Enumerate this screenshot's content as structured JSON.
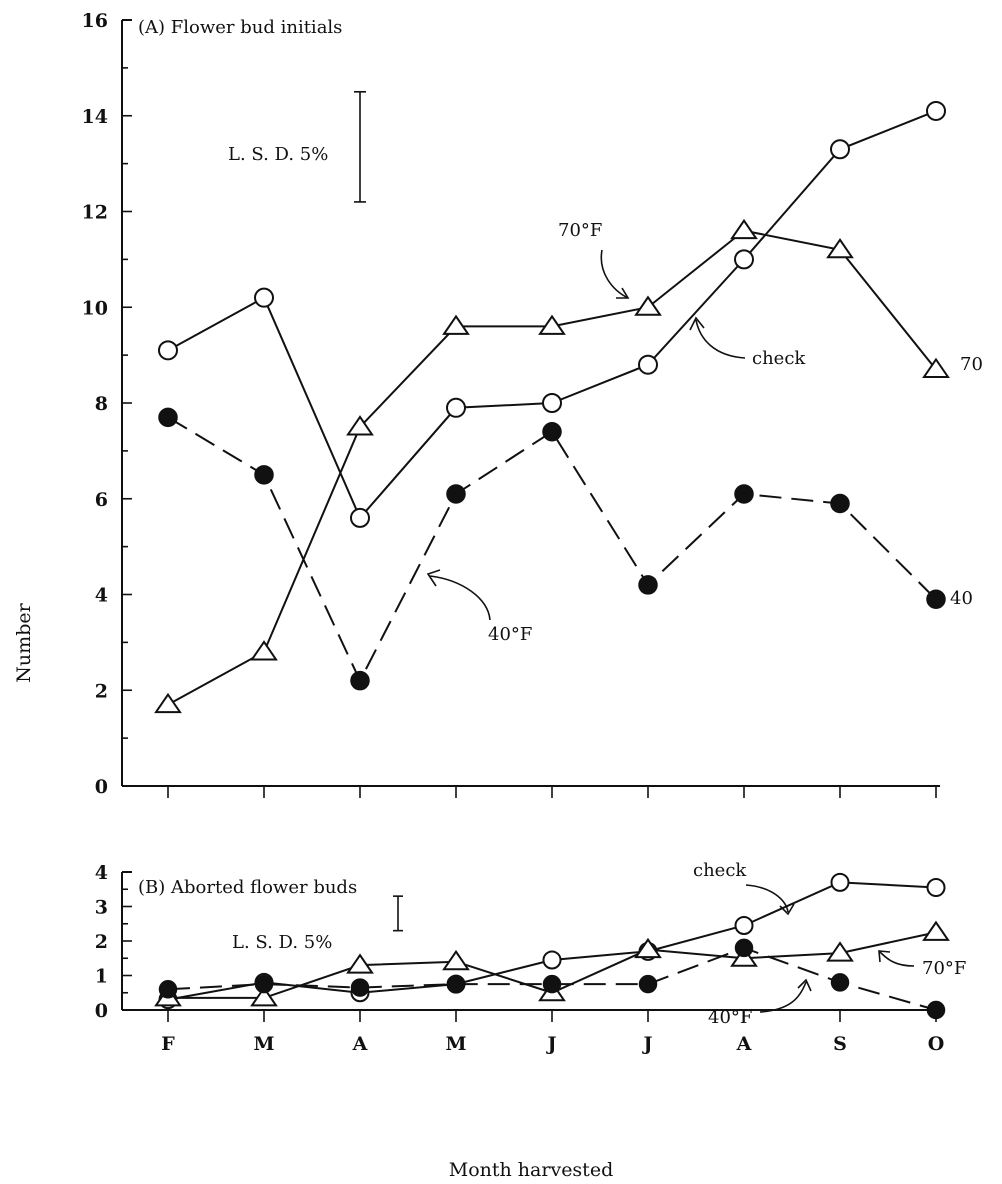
{
  "chart_data": [
    {
      "type": "line",
      "title": "(A) Flower bud initials",
      "ylabel": "Number",
      "xlabel": "",
      "categories": [
        "F",
        "M",
        "A",
        "M",
        "J",
        "J",
        "A",
        "S",
        "O"
      ],
      "ylim": [
        0,
        16
      ],
      "yticks": [
        0,
        2,
        4,
        6,
        8,
        10,
        12,
        14,
        16
      ],
      "grid": false,
      "lsd_label": "L. S. D. 5%",
      "lsd_range": [
        12.2,
        14.5
      ],
      "series": [
        {
          "name": "check",
          "marker": "open-circle",
          "style": "solid",
          "values": [
            9.1,
            10.2,
            5.6,
            7.9,
            8.0,
            8.8,
            11.0,
            13.3,
            14.1
          ]
        },
        {
          "name": "70°F",
          "marker": "open-triangle",
          "style": "solid",
          "values": [
            1.7,
            2.8,
            7.5,
            9.6,
            9.6,
            10.0,
            11.6,
            11.2,
            8.7
          ]
        },
        {
          "name": "40°F",
          "marker": "filled-circle",
          "style": "dashed",
          "values": [
            7.7,
            6.5,
            2.2,
            6.1,
            7.4,
            4.2,
            6.1,
            5.9,
            3.9
          ]
        }
      ],
      "annotations": [
        {
          "text": "70°F",
          "target_series": "70°F"
        },
        {
          "text": "check",
          "target_series": "check"
        },
        {
          "text": "40°F",
          "target_series": "40°F"
        },
        {
          "text": "70",
          "target_series": "70°F"
        },
        {
          "text": "40",
          "target_series": "40°F"
        }
      ]
    },
    {
      "type": "line",
      "title": "(B) Aborted flower buds",
      "xlabel": "Month harvested",
      "ylabel": "",
      "categories": [
        "F",
        "M",
        "A",
        "M",
        "J",
        "J",
        "A",
        "S",
        "O"
      ],
      "ylim": [
        0,
        4
      ],
      "yticks": [
        0,
        1,
        2,
        3,
        4
      ],
      "grid": false,
      "lsd_label": "L. S. D. 5%",
      "lsd_range": [
        2.3,
        3.3
      ],
      "series": [
        {
          "name": "check",
          "marker": "open-circle",
          "style": "solid",
          "values": [
            0.3,
            0.8,
            0.5,
            0.75,
            1.45,
            1.7,
            2.45,
            3.7,
            3.55
          ]
        },
        {
          "name": "70°F",
          "marker": "open-triangle",
          "style": "solid",
          "values": [
            0.35,
            0.35,
            1.3,
            1.4,
            0.5,
            1.75,
            1.5,
            1.65,
            2.25
          ]
        },
        {
          "name": "40°F",
          "marker": "filled-circle",
          "style": "dashed",
          "values": [
            0.6,
            0.75,
            0.65,
            0.75,
            0.75,
            0.75,
            1.8,
            0.8,
            0.0
          ]
        }
      ],
      "annotations": [
        {
          "text": "check",
          "target_series": "check"
        },
        {
          "text": "70°F",
          "target_series": "70°F"
        },
        {
          "text": "40°F",
          "target_series": "40°F"
        }
      ]
    }
  ]
}
